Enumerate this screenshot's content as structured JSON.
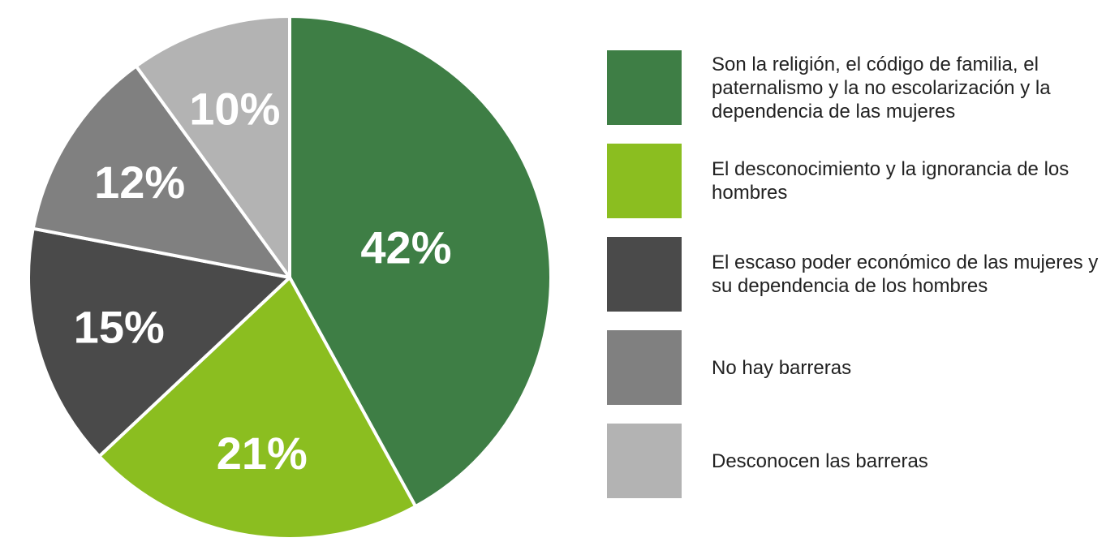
{
  "chart_data": {
    "type": "pie",
    "categories": [
      "Son la religión, el código de familia, el paternalismo y la no escolarización y la dependencia de las mujeres",
      "El desconocimiento y la ignorancia de los hombres",
      "El escaso poder económico de las mujeres y su dependencia de los hombres",
      "No hay barreras",
      "Desconocen las barreras"
    ],
    "values": [
      42,
      21,
      15,
      12,
      10
    ],
    "value_labels": [
      "42%",
      "21%",
      "15%",
      "12%",
      "10%"
    ],
    "colors": [
      "#3e7e45",
      "#8bbe20",
      "#4a4a4a",
      "#808080",
      "#b3b3b3"
    ],
    "legend": "right"
  }
}
